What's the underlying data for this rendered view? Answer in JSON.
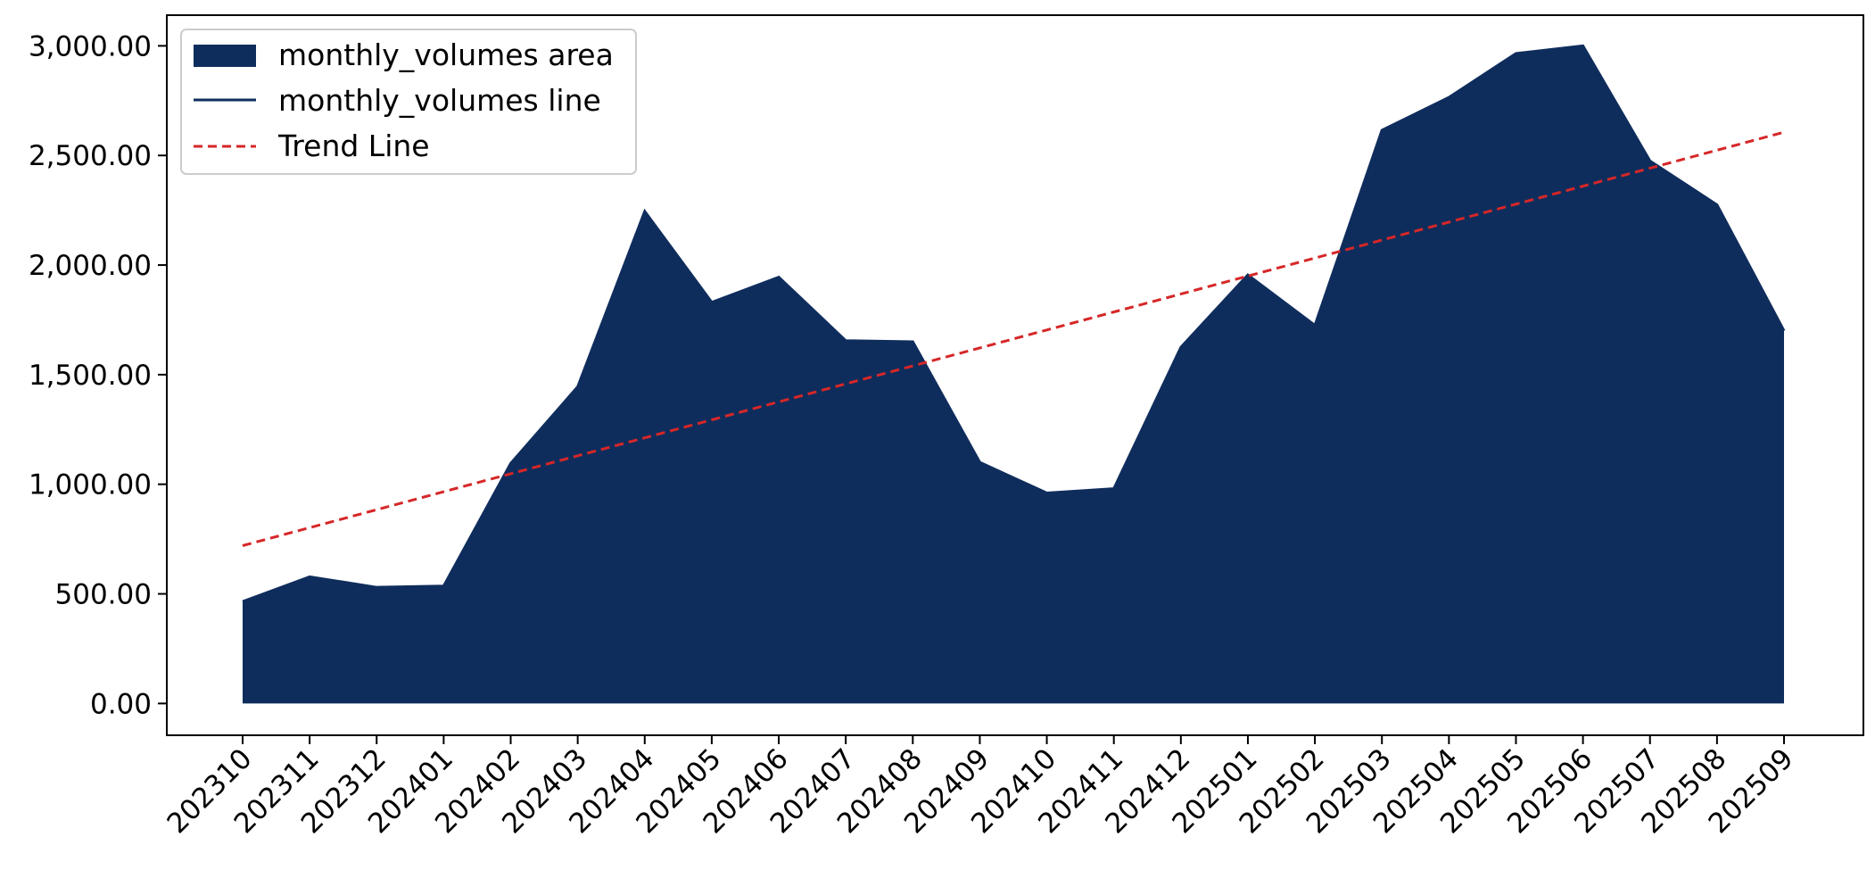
{
  "chart_data": {
    "type": "area",
    "title": "",
    "xlabel": "",
    "ylabel": "",
    "categories": [
      "202310",
      "202311",
      "202312",
      "202401",
      "202402",
      "202403",
      "202404",
      "202405",
      "202406",
      "202407",
      "202408",
      "202409",
      "202410",
      "202411",
      "202412",
      "202501",
      "202502",
      "202503",
      "202504",
      "202505",
      "202506",
      "202507",
      "202508",
      "202509"
    ],
    "series": [
      {
        "name": "monthly_volumes area",
        "kind": "area",
        "color": "#0f2d5c",
        "values": [
          465,
          578,
          530,
          536,
          1095,
          1445,
          2245,
          1830,
          1945,
          1655,
          1650,
          1100,
          960,
          980,
          1625,
          1955,
          1725,
          2615,
          2765,
          2965,
          3000,
          2475,
          2275,
          1700
        ]
      },
      {
        "name": "monthly_volumes line",
        "kind": "line",
        "color": "#0f2d5c",
        "values": [
          465,
          578,
          530,
          536,
          1095,
          1445,
          2245,
          1830,
          1945,
          1655,
          1650,
          1100,
          960,
          980,
          1625,
          1955,
          1725,
          2615,
          2765,
          2965,
          3000,
          2475,
          2275,
          1700
        ]
      },
      {
        "name": "Trend Line",
        "kind": "trend",
        "color": "#d62728",
        "values": [
          720,
          802,
          884,
          966,
          1048,
          1130,
          1212,
          1294,
          1376,
          1458,
          1540,
          1622,
          1704,
          1786,
          1868,
          1950,
          2032,
          2114,
          2196,
          2278,
          2360,
          2442,
          2524,
          2606
        ]
      }
    ],
    "ylim": [
      -145,
      3140
    ],
    "yticks": [
      0,
      500,
      1000,
      1500,
      2000,
      2500,
      3000
    ],
    "ytick_labels": [
      "0.00",
      "500.00",
      "1,000.00",
      "1,500.00",
      "2,000.00",
      "2,500.00",
      "3,000.00"
    ],
    "grid": false,
    "legend": {
      "placement": "top-left",
      "entries": [
        "monthly_volumes area",
        "monthly_volumes line",
        "Trend Line"
      ]
    }
  }
}
